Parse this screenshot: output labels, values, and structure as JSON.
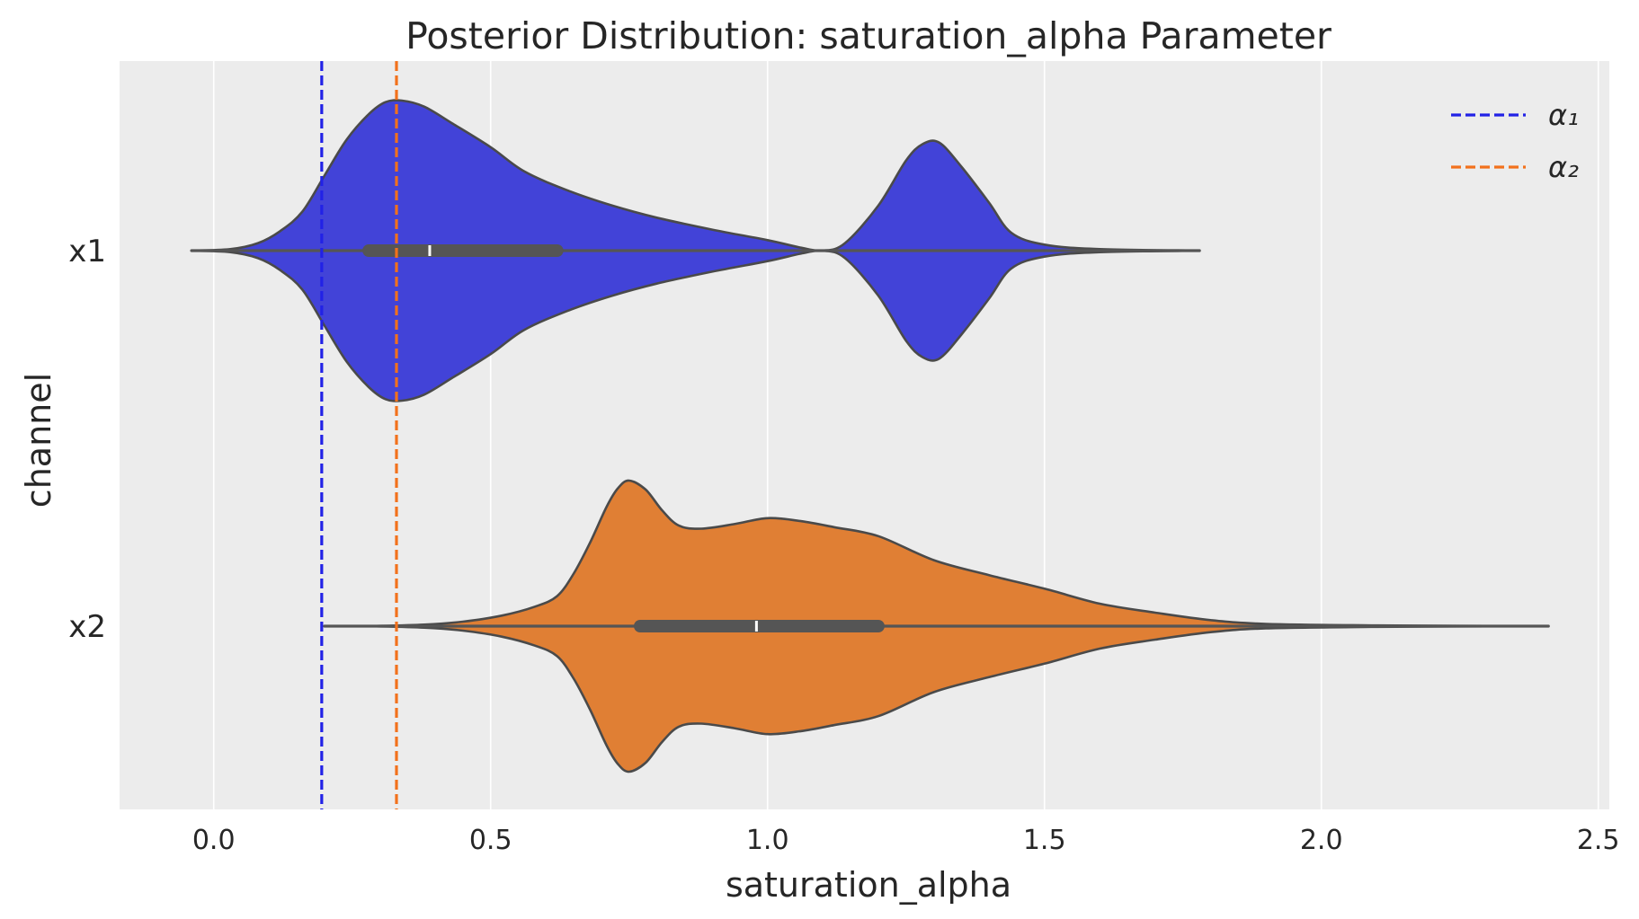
{
  "chart_data": {
    "type": "violin",
    "orientation": "horizontal",
    "title": "Posterior Distribution: saturation_alpha Parameter",
    "xlabel": "saturation_alpha",
    "ylabel": "channel",
    "xlim": [
      -0.17,
      2.52
    ],
    "xticks": [
      0.0,
      0.5,
      1.0,
      1.5,
      2.0,
      2.5
    ],
    "xtick_labels": [
      "0.0",
      "0.5",
      "1.0",
      "1.5",
      "2.0",
      "2.5"
    ],
    "grid": true,
    "background": "#ececec",
    "categories": [
      "x1",
      "x2"
    ],
    "violins": [
      {
        "category": "x1",
        "color": "#4243d8",
        "whisker": [
          -0.04,
          1.78
        ],
        "q1": 0.28,
        "median": 0.39,
        "q3": 0.62,
        "density": [
          [
            -0.04,
            0.0
          ],
          [
            0.03,
            0.01
          ],
          [
            0.08,
            0.05
          ],
          [
            0.12,
            0.13
          ],
          [
            0.16,
            0.26
          ],
          [
            0.2,
            0.5
          ],
          [
            0.24,
            0.74
          ],
          [
            0.28,
            0.91
          ],
          [
            0.31,
            0.99
          ],
          [
            0.34,
            1.0
          ],
          [
            0.38,
            0.96
          ],
          [
            0.43,
            0.85
          ],
          [
            0.5,
            0.69
          ],
          [
            0.56,
            0.53
          ],
          [
            0.64,
            0.4
          ],
          [
            0.72,
            0.3
          ],
          [
            0.8,
            0.22
          ],
          [
            0.9,
            0.14
          ],
          [
            1.0,
            0.07
          ],
          [
            1.06,
            0.02
          ],
          [
            1.1,
            0.0
          ],
          [
            1.14,
            0.05
          ],
          [
            1.2,
            0.3
          ],
          [
            1.25,
            0.6
          ],
          [
            1.28,
            0.71
          ],
          [
            1.31,
            0.72
          ],
          [
            1.35,
            0.56
          ],
          [
            1.4,
            0.32
          ],
          [
            1.44,
            0.12
          ],
          [
            1.5,
            0.04
          ],
          [
            1.6,
            0.01
          ],
          [
            1.78,
            0.0
          ]
        ]
      },
      {
        "category": "x2",
        "color": "#e07f34",
        "whisker": [
          0.2,
          2.41
        ],
        "q1": 0.77,
        "median": 0.98,
        "q3": 1.2,
        "density": [
          [
            0.28,
            0.0
          ],
          [
            0.38,
            0.01
          ],
          [
            0.45,
            0.03
          ],
          [
            0.52,
            0.07
          ],
          [
            0.58,
            0.13
          ],
          [
            0.62,
            0.2
          ],
          [
            0.65,
            0.35
          ],
          [
            0.68,
            0.56
          ],
          [
            0.71,
            0.8
          ],
          [
            0.73,
            0.92
          ],
          [
            0.75,
            0.97
          ],
          [
            0.78,
            0.91
          ],
          [
            0.81,
            0.77
          ],
          [
            0.84,
            0.67
          ],
          [
            0.88,
            0.65
          ],
          [
            0.94,
            0.68
          ],
          [
            1.0,
            0.72
          ],
          [
            1.06,
            0.7
          ],
          [
            1.12,
            0.66
          ],
          [
            1.2,
            0.6
          ],
          [
            1.3,
            0.44
          ],
          [
            1.4,
            0.34
          ],
          [
            1.5,
            0.25
          ],
          [
            1.6,
            0.15
          ],
          [
            1.7,
            0.09
          ],
          [
            1.8,
            0.04
          ],
          [
            1.9,
            0.015
          ],
          [
            2.1,
            0.005
          ],
          [
            2.41,
            0.0
          ]
        ]
      }
    ],
    "reference_lines": [
      {
        "label": "α₁",
        "value": 0.195,
        "color": "#2222e6",
        "style": "dashed"
      },
      {
        "label": "α₂",
        "value": 0.33,
        "color": "#f2711c",
        "style": "dashed"
      }
    ],
    "legend": {
      "position": "top-right",
      "entries": [
        {
          "label": "α₁",
          "color": "#2222e6"
        },
        {
          "label": "α₂",
          "color": "#f2711c"
        }
      ]
    }
  }
}
